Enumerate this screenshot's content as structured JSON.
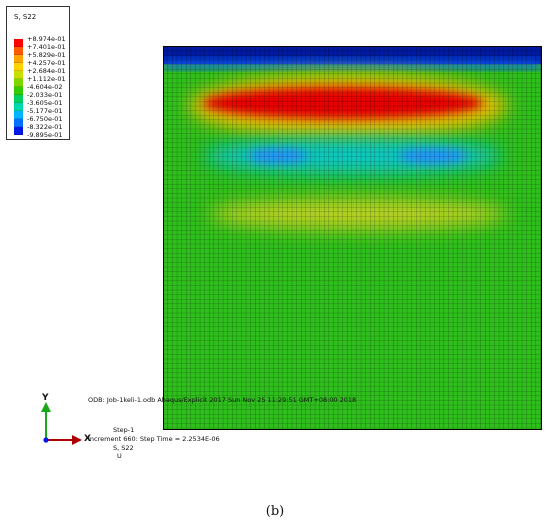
{
  "legend": {
    "title": "S, S22",
    "values": [
      "+8.974e-01",
      "+7.401e-01",
      "+5.829e-01",
      "+4.257e-01",
      "+2.684e-01",
      "+1.112e-01",
      "-4.604e-02",
      "-2.033e-01",
      "-3.605e-01",
      "-5.177e-01",
      "-6.750e-01",
      "-8.322e-01",
      "-9.895e-01"
    ],
    "colors": [
      "#ff0000",
      "#ff5a00",
      "#ffa500",
      "#ffd400",
      "#c8e000",
      "#7ed800",
      "#33cc00",
      "#00d060",
      "#00d8b0",
      "#00b4ff",
      "#0070ff",
      "#0018e8"
    ]
  },
  "axes": {
    "y_label": "Y",
    "x_label": "X"
  },
  "status": {
    "odb": "ODB: Job-1keli-1.odb    Abaqus/Explicit 2017    Sun Nov 25 11:29:51 GMT+08:00 2018",
    "step": "Step-1",
    "increment": "Increment       660: Step Time =    2.2534E-06",
    "variable": "S, S22",
    "deformed": "U"
  },
  "caption": "(b)"
}
